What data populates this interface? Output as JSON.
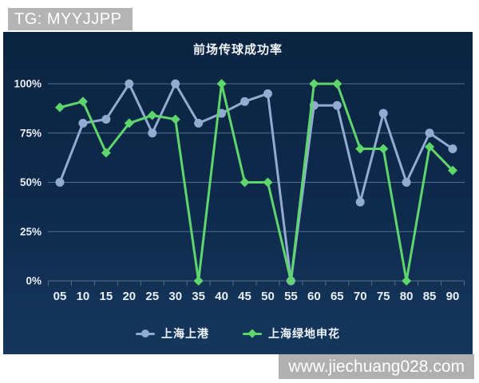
{
  "watermark_top": "TG: MYYJJPP",
  "watermark_bottom": "www.jiechuang028.com",
  "chart_data": {
    "type": "line",
    "title": "前场传球成功率",
    "categories": [
      "05",
      "10",
      "15",
      "20",
      "25",
      "30",
      "35",
      "40",
      "45",
      "50",
      "55",
      "60",
      "65",
      "70",
      "75",
      "80",
      "85",
      "90"
    ],
    "y_tick_labels": [
      "100%",
      "75%",
      "50%",
      "25%",
      "0%"
    ],
    "y_tick_values": [
      100,
      75,
      50,
      25,
      0
    ],
    "ylim": [
      0,
      100
    ],
    "xlabel": "",
    "ylabel": "",
    "grid": true,
    "legend_position": "bottom",
    "series": [
      {
        "name": "上海上港",
        "marker": "circle",
        "color": "#92abd1",
        "values": [
          50,
          80,
          82,
          100,
          75,
          100,
          80,
          85,
          91,
          95,
          0,
          89,
          89,
          40,
          85,
          50,
          75,
          67
        ]
      },
      {
        "name": "上海绿地申花",
        "marker": "diamond",
        "color": "#5fd66c",
        "values": [
          88,
          91,
          65,
          80,
          84,
          82,
          0,
          100,
          50,
          50,
          0,
          100,
          100,
          67,
          67,
          0,
          68,
          56
        ]
      }
    ],
    "colors": {
      "background": "#0e2a4c",
      "gridline": "#4f7090",
      "axis_label": "#e8eff7",
      "title": "#f2f6fb"
    }
  }
}
